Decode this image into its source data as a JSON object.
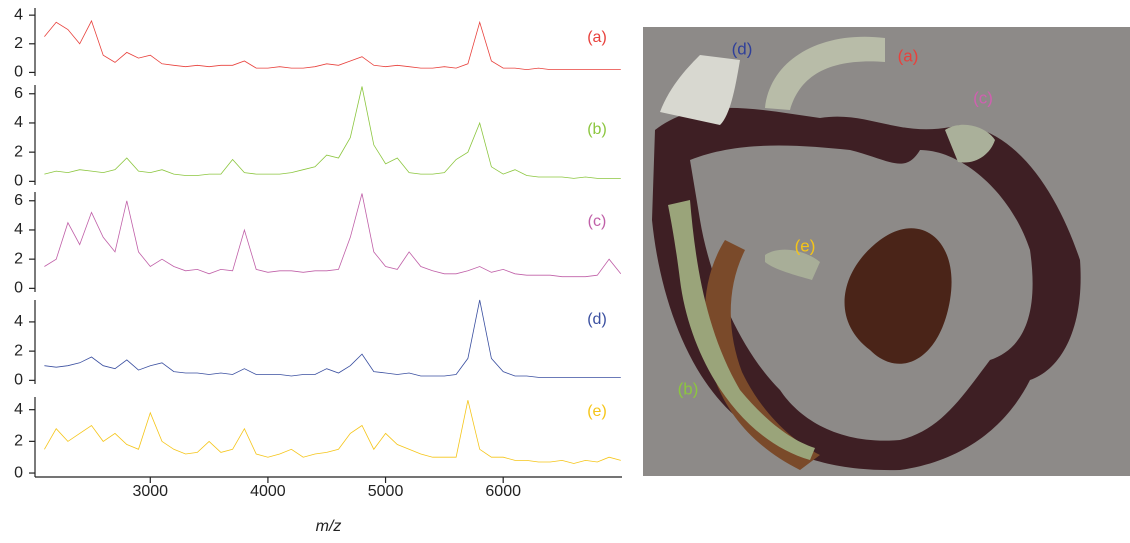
{
  "chart_data": [
    {
      "type": "line",
      "name": "(a)",
      "color": "#e8413c",
      "x": [
        2100,
        2200,
        2300,
        2400,
        2500,
        2600,
        2700,
        2800,
        2900,
        3000,
        3100,
        3200,
        3300,
        3400,
        3500,
        3600,
        3700,
        3800,
        3900,
        4000,
        4100,
        4200,
        4300,
        4400,
        4500,
        4600,
        4700,
        4800,
        4900,
        5000,
        5100,
        5200,
        5300,
        5400,
        5500,
        5600,
        5700,
        5800,
        5900,
        6000,
        6100,
        6200,
        6300,
        6400,
        6500,
        6600,
        6700,
        6800,
        6900,
        7000
      ],
      "values": [
        2.5,
        3.5,
        3.0,
        2.0,
        3.6,
        1.2,
        0.7,
        1.4,
        1.0,
        1.2,
        0.6,
        0.5,
        0.4,
        0.5,
        0.4,
        0.5,
        0.5,
        0.8,
        0.3,
        0.3,
        0.4,
        0.3,
        0.3,
        0.4,
        0.6,
        0.5,
        0.8,
        1.1,
        0.5,
        0.4,
        0.5,
        0.4,
        0.3,
        0.3,
        0.4,
        0.3,
        0.6,
        3.5,
        0.8,
        0.3,
        0.3,
        0.2,
        0.3,
        0.2,
        0.2,
        0.2,
        0.2,
        0.2,
        0.2,
        0.2
      ],
      "xlim": [
        2020,
        7010
      ],
      "ylim": [
        -0.25,
        4.5
      ],
      "yticks": [
        0,
        2,
        4
      ]
    },
    {
      "type": "line",
      "name": "(b)",
      "color": "#8cc63f",
      "x": [
        2100,
        2200,
        2300,
        2400,
        2500,
        2600,
        2700,
        2800,
        2900,
        3000,
        3100,
        3200,
        3300,
        3400,
        3500,
        3600,
        3700,
        3800,
        3900,
        4000,
        4100,
        4200,
        4300,
        4400,
        4500,
        4600,
        4700,
        4800,
        4900,
        5000,
        5100,
        5200,
        5300,
        5400,
        5500,
        5600,
        5700,
        5800,
        5900,
        6000,
        6100,
        6200,
        6300,
        6400,
        6500,
        6600,
        6700,
        6800,
        6900,
        7000
      ],
      "values": [
        0.5,
        0.7,
        0.6,
        0.8,
        0.7,
        0.6,
        0.8,
        1.6,
        0.7,
        0.6,
        0.8,
        0.5,
        0.4,
        0.4,
        0.5,
        0.5,
        1.5,
        0.6,
        0.5,
        0.5,
        0.5,
        0.6,
        0.8,
        1.0,
        1.8,
        1.6,
        3.0,
        6.5,
        2.5,
        1.2,
        1.6,
        0.6,
        0.5,
        0.5,
        0.6,
        1.5,
        2.0,
        4.0,
        1.0,
        0.5,
        0.8,
        0.4,
        0.3,
        0.3,
        0.3,
        0.2,
        0.3,
        0.2,
        0.2,
        0.2
      ],
      "xlim": [
        2020,
        7010
      ],
      "ylim": [
        -0.25,
        6.6
      ],
      "yticks": [
        0,
        2,
        4,
        6
      ]
    },
    {
      "type": "line",
      "name": "(c)",
      "color": "#c060a8",
      "x": [
        2100,
        2200,
        2300,
        2400,
        2500,
        2600,
        2700,
        2800,
        2900,
        3000,
        3100,
        3200,
        3300,
        3400,
        3500,
        3600,
        3700,
        3800,
        3900,
        4000,
        4100,
        4200,
        4300,
        4400,
        4500,
        4600,
        4700,
        4800,
        4900,
        5000,
        5100,
        5200,
        5300,
        5400,
        5500,
        5600,
        5700,
        5800,
        5900,
        6000,
        6100,
        6200,
        6300,
        6400,
        6500,
        6600,
        6700,
        6800,
        6900,
        7000
      ],
      "values": [
        1.5,
        2.0,
        4.5,
        3.0,
        5.2,
        3.5,
        2.5,
        6.0,
        2.5,
        1.5,
        2.0,
        1.5,
        1.2,
        1.3,
        1.0,
        1.3,
        1.2,
        4.0,
        1.3,
        1.1,
        1.2,
        1.2,
        1.1,
        1.2,
        1.2,
        1.3,
        3.5,
        6.5,
        2.5,
        1.5,
        1.3,
        2.5,
        1.5,
        1.2,
        1.0,
        1.0,
        1.2,
        1.5,
        1.1,
        1.3,
        1.0,
        0.9,
        0.9,
        0.9,
        0.8,
        0.8,
        0.8,
        0.9,
        2.0,
        1.0
      ],
      "xlim": [
        2020,
        7010
      ],
      "ylim": [
        -0.25,
        6.6
      ],
      "yticks": [
        0,
        2,
        4,
        6
      ]
    },
    {
      "type": "line",
      "name": "(d)",
      "color": "#3a4fa0",
      "x": [
        2100,
        2200,
        2300,
        2400,
        2500,
        2600,
        2700,
        2800,
        2900,
        3000,
        3100,
        3200,
        3300,
        3400,
        3500,
        3600,
        3700,
        3800,
        3900,
        4000,
        4100,
        4200,
        4300,
        4400,
        4500,
        4600,
        4700,
        4800,
        4900,
        5000,
        5100,
        5200,
        5300,
        5400,
        5500,
        5600,
        5700,
        5800,
        5900,
        6000,
        6100,
        6200,
        6300,
        6400,
        6500,
        6600,
        6700,
        6800,
        6900,
        7000
      ],
      "values": [
        1.0,
        0.9,
        1.0,
        1.2,
        1.6,
        1.0,
        0.8,
        1.4,
        0.7,
        1.0,
        1.2,
        0.6,
        0.5,
        0.5,
        0.4,
        0.5,
        0.4,
        0.8,
        0.4,
        0.4,
        0.4,
        0.3,
        0.4,
        0.4,
        0.8,
        0.5,
        1.0,
        1.8,
        0.6,
        0.5,
        0.4,
        0.5,
        0.3,
        0.3,
        0.3,
        0.4,
        1.5,
        5.5,
        1.5,
        0.6,
        0.3,
        0.3,
        0.2,
        0.2,
        0.2,
        0.2,
        0.2,
        0.2,
        0.2,
        0.2
      ],
      "xlim": [
        2020,
        7010
      ],
      "ylim": [
        -0.25,
        5.5
      ],
      "yticks": [
        0,
        2,
        4
      ]
    },
    {
      "type": "line",
      "name": "(e)",
      "color": "#f5c518",
      "x": [
        2100,
        2200,
        2300,
        2400,
        2500,
        2600,
        2700,
        2800,
        2900,
        3000,
        3100,
        3200,
        3300,
        3400,
        3500,
        3600,
        3700,
        3800,
        3900,
        4000,
        4100,
        4200,
        4300,
        4400,
        4500,
        4600,
        4700,
        4800,
        4900,
        5000,
        5100,
        5200,
        5300,
        5400,
        5500,
        5600,
        5700,
        5800,
        5900,
        6000,
        6100,
        6200,
        6300,
        6400,
        6500,
        6600,
        6700,
        6800,
        6900,
        7000
      ],
      "values": [
        1.5,
        2.8,
        2.0,
        2.5,
        3.0,
        2.0,
        2.5,
        1.8,
        1.5,
        3.8,
        2.0,
        1.5,
        1.2,
        1.3,
        2.0,
        1.3,
        1.5,
        2.8,
        1.2,
        1.0,
        1.2,
        1.5,
        1.0,
        1.2,
        1.3,
        1.5,
        2.5,
        3.0,
        1.5,
        2.5,
        1.8,
        1.5,
        1.2,
        1.0,
        1.0,
        1.0,
        4.6,
        1.5,
        1.0,
        1.0,
        0.8,
        0.8,
        0.7,
        0.7,
        0.8,
        0.6,
        0.8,
        0.7,
        1.0,
        0.8
      ],
      "xlim": [
        2020,
        7010
      ],
      "ylim": [
        -0.25,
        4.8
      ],
      "yticks": [
        0,
        2,
        4
      ],
      "xticks": [
        3000,
        4000,
        5000,
        6000
      ],
      "xlabel": "m/z"
    }
  ],
  "image": {
    "labels": [
      "(a)",
      "(b)",
      "(c)",
      "(d)",
      "(e)"
    ]
  }
}
